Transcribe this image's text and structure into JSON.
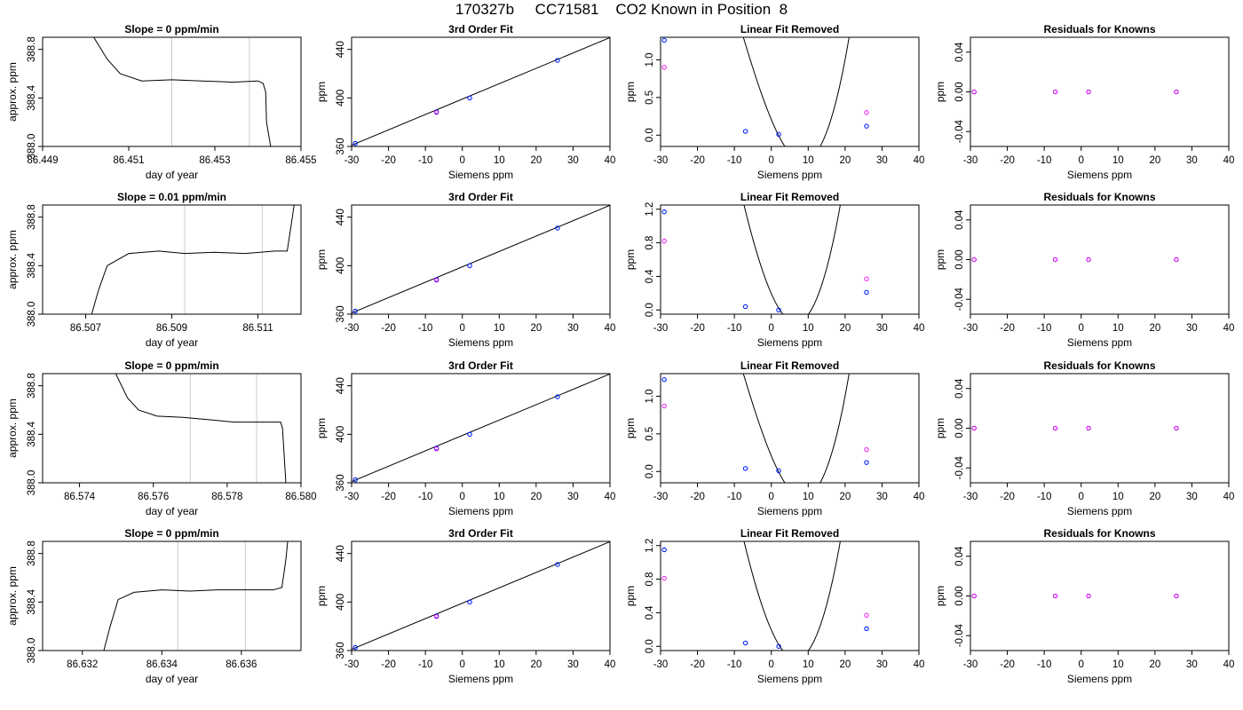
{
  "figure": {
    "title": "170327b     CC71581    CO2 Known in Position  8"
  },
  "chart_data": [
    {
      "type": "line",
      "title": "Slope =  0  ppm/min",
      "xlabel": "day of year",
      "ylabel": "approx. ppm",
      "xlim": [
        86.449,
        86.455
      ],
      "ylim": [
        388.0,
        388.9
      ],
      "xticks": [
        "86.449",
        "86.451",
        "86.453",
        "86.455"
      ],
      "yticks": [
        "388.0",
        "388.4",
        "388.8"
      ],
      "vlines": [
        86.452,
        86.4538
      ],
      "vline_color": "#cccccc",
      "series": [
        {
          "x": [
            86.4501,
            86.4505,
            86.4508,
            86.4513,
            86.452,
            86.4527,
            86.4534,
            86.454,
            86.45412,
            86.45418,
            86.4542,
            86.45432
          ],
          "values": [
            388.95,
            388.72,
            388.6,
            388.54,
            388.55,
            388.54,
            388.53,
            388.54,
            388.52,
            388.45,
            388.2,
            387.95
          ]
        }
      ]
    },
    {
      "type": "scatter",
      "title": "3rd Order Fit",
      "xlabel": "Siemens ppm",
      "ylabel": "ppm",
      "xlim": [
        -30,
        40
      ],
      "ylim": [
        360,
        450
      ],
      "xticks": [
        "-30",
        "-20",
        "-10",
        "0",
        "10",
        "20",
        "30",
        "40"
      ],
      "yticks": [
        "360",
        "400",
        "440"
      ],
      "line": {
        "x": [
          -30,
          41
        ],
        "y": [
          361,
          451
        ]
      },
      "series": [
        {
          "name": "cyan",
          "color": "#00bfff",
          "x": [
            -29,
            -7,
            2,
            25.8
          ],
          "values": [
            362.5,
            388.5,
            400,
            431
          ]
        },
        {
          "name": "blue",
          "color": "#0000ff",
          "x": [
            -29,
            -7,
            2,
            25.8
          ],
          "values": [
            362.5,
            388.5,
            400,
            431
          ]
        },
        {
          "name": "magenta",
          "color": "#ee00ee",
          "x": [
            -7
          ],
          "values": [
            388
          ]
        }
      ]
    },
    {
      "type": "scatter",
      "title": "Linear Fit Removed",
      "xlabel": "Siemens ppm",
      "ylabel": "ppm",
      "xlim": [
        -30,
        40
      ],
      "ylim": [
        -0.15,
        1.3
      ],
      "xticks": [
        "-30",
        "-20",
        "-10",
        "0",
        "10",
        "20",
        "30",
        "40"
      ],
      "yticks": [
        "0.0",
        "0.5",
        "1.0"
      ],
      "curve": [
        -29,
        40,
        0.00155,
        0.00475,
        -0.1172,
        0.2072
      ],
      "series": [
        {
          "name": "cyan",
          "color": "#00bfff",
          "x": [
            -29,
            -7,
            2,
            25.8
          ],
          "values": [
            1.26,
            0.05,
            0.01,
            0.12
          ]
        },
        {
          "name": "blue",
          "color": "#0000ff",
          "x": [
            -29,
            -7,
            2,
            25.8
          ],
          "values": [
            1.26,
            0.05,
            0.01,
            0.12
          ]
        },
        {
          "name": "magenta",
          "color": "#ee00ee",
          "x": [
            -29,
            25.8
          ],
          "values": [
            0.9,
            0.3
          ]
        }
      ]
    },
    {
      "type": "scatter",
      "title": "Residuals for Knowns",
      "xlabel": "Siemens ppm",
      "ylabel": "ppm",
      "xlim": [
        -30,
        40
      ],
      "ylim": [
        -0.055,
        0.055
      ],
      "xticks": [
        "-30",
        "-20",
        "-10",
        "0",
        "10",
        "20",
        "30",
        "40"
      ],
      "yticks": [
        "-0.04",
        "0.00",
        "0.04"
      ],
      "series": [
        {
          "name": "blue",
          "color": "#0000ff",
          "x": [
            -29,
            -7,
            2,
            25.8
          ],
          "values": [
            0,
            0,
            0,
            0
          ]
        },
        {
          "name": "magenta",
          "color": "#ee00ee",
          "x": [
            -29,
            -7,
            2,
            25.8
          ],
          "values": [
            0,
            0,
            0,
            0
          ]
        }
      ]
    },
    {
      "type": "line",
      "title": "Slope =  0.01  ppm/min",
      "xlabel": "day of year",
      "ylabel": "approx. ppm",
      "xlim": [
        86.506,
        86.512
      ],
      "ylim": [
        388.0,
        388.9
      ],
      "xticks": [
        "86.507",
        "86.509",
        "86.511"
      ],
      "yticks": [
        "388.0",
        "388.4",
        "388.8"
      ],
      "vlines": [
        86.5093,
        86.5111
      ],
      "vline_color": "#cccccc",
      "series": [
        {
          "x": [
            86.5071,
            86.5073,
            86.5075,
            86.508,
            86.5087,
            86.5093,
            86.51,
            86.5107,
            86.5114,
            86.51168,
            86.5118,
            86.51186
          ],
          "values": [
            387.95,
            388.2,
            388.4,
            388.5,
            388.52,
            388.5,
            388.51,
            388.5,
            388.52,
            388.52,
            388.8,
            388.95
          ]
        }
      ]
    },
    {
      "type": "scatter",
      "title": "3rd Order Fit",
      "xlabel": "Siemens ppm",
      "ylabel": "ppm",
      "xlim": [
        -30,
        40
      ],
      "ylim": [
        360,
        450
      ],
      "xticks": [
        "-30",
        "-20",
        "-10",
        "0",
        "10",
        "20",
        "30",
        "40"
      ],
      "yticks": [
        "360",
        "400",
        "440"
      ],
      "line": {
        "x": [
          -30,
          41
        ],
        "y": [
          361,
          451
        ]
      },
      "series": [
        {
          "name": "cyan",
          "color": "#00bfff",
          "x": [
            -29,
            -7,
            2,
            25.8
          ],
          "values": [
            362.5,
            388.5,
            400,
            431
          ]
        },
        {
          "name": "blue",
          "color": "#0000ff",
          "x": [
            -29,
            -7,
            2,
            25.8
          ],
          "values": [
            362.5,
            388.5,
            400,
            431
          ]
        },
        {
          "name": "magenta",
          "color": "#ee00ee",
          "x": [
            -7
          ],
          "values": [
            388
          ]
        }
      ]
    },
    {
      "type": "scatter",
      "title": "Linear Fit Removed",
      "xlabel": "Siemens ppm",
      "ylabel": "ppm",
      "xlim": [
        -30,
        40
      ],
      "ylim": [
        -0.05,
        1.25
      ],
      "xticks": [
        "-30",
        "-20",
        "-10",
        "0",
        "10",
        "20",
        "30",
        "40"
      ],
      "yticks": [
        "0.0",
        "0.4",
        "0.8",
        "1.2"
      ],
      "curve": [
        -29,
        40,
        0.001,
        0.0065,
        -0.1,
        0.1948
      ],
      "series": [
        {
          "name": "cyan",
          "color": "#00bfff",
          "x": [
            -29,
            -7,
            2,
            25.8
          ],
          "values": [
            1.17,
            0.04,
            0.0,
            0.21
          ]
        },
        {
          "name": "blue",
          "color": "#0000ff",
          "x": [
            -29,
            -7,
            2,
            25.8
          ],
          "values": [
            1.17,
            0.04,
            0.0,
            0.21
          ]
        },
        {
          "name": "magenta",
          "color": "#ee00ee",
          "x": [
            -29,
            25.8
          ],
          "values": [
            0.82,
            0.37
          ]
        }
      ]
    },
    {
      "type": "scatter",
      "title": "Residuals for Knowns",
      "xlabel": "Siemens ppm",
      "ylabel": "ppm",
      "xlim": [
        -30,
        40
      ],
      "ylim": [
        -0.055,
        0.055
      ],
      "xticks": [
        "-30",
        "-20",
        "-10",
        "0",
        "10",
        "20",
        "30",
        "40"
      ],
      "yticks": [
        "-0.04",
        "0.00",
        "0.04"
      ],
      "series": [
        {
          "name": "blue",
          "color": "#0000ff",
          "x": [
            -29,
            -7,
            2,
            25.8
          ],
          "values": [
            0,
            0,
            0,
            0
          ]
        },
        {
          "name": "magenta",
          "color": "#ee00ee",
          "x": [
            -29,
            -7,
            2,
            25.8
          ],
          "values": [
            0,
            0,
            0,
            0
          ]
        }
      ]
    },
    {
      "type": "line",
      "title": "Slope =  0  ppm/min",
      "xlabel": "day of year",
      "ylabel": "approx. ppm",
      "xlim": [
        86.573,
        86.58
      ],
      "ylim": [
        388.0,
        388.9
      ],
      "xticks": [
        "86.574",
        "86.576",
        "86.578",
        "86.580"
      ],
      "yticks": [
        "388.0",
        "388.4",
        "388.8"
      ],
      "vlines": [
        86.577,
        86.5788
      ],
      "vline_color": "#cccccc",
      "series": [
        {
          "x": [
            86.5749,
            86.5753,
            86.5756,
            86.5761,
            86.5768,
            86.5775,
            86.5782,
            86.5789,
            86.57945,
            86.5795,
            86.57955,
            86.5796
          ],
          "values": [
            388.95,
            388.7,
            388.6,
            388.55,
            388.54,
            388.52,
            388.5,
            388.5,
            388.5,
            388.45,
            388.2,
            387.95
          ]
        }
      ]
    },
    {
      "type": "scatter",
      "title": "3rd Order Fit",
      "xlabel": "Siemens ppm",
      "ylabel": "ppm",
      "xlim": [
        -30,
        40
      ],
      "ylim": [
        360,
        450
      ],
      "xticks": [
        "-30",
        "-20",
        "-10",
        "0",
        "10",
        "20",
        "30",
        "40"
      ],
      "yticks": [
        "360",
        "400",
        "440"
      ],
      "line": {
        "x": [
          -30,
          41
        ],
        "y": [
          361,
          451
        ]
      },
      "series": [
        {
          "name": "cyan",
          "color": "#00bfff",
          "x": [
            -29,
            -7,
            2,
            25.8
          ],
          "values": [
            362.5,
            388.5,
            400,
            431
          ]
        },
        {
          "name": "blue",
          "color": "#0000ff",
          "x": [
            -29,
            -7,
            2,
            25.8
          ],
          "values": [
            362.5,
            388.5,
            400,
            431
          ]
        },
        {
          "name": "magenta",
          "color": "#ee00ee",
          "x": [
            -7
          ],
          "values": [
            388
          ]
        }
      ]
    },
    {
      "type": "scatter",
      "title": "Linear Fit Removed",
      "xlabel": "Siemens ppm",
      "ylabel": "ppm",
      "xlim": [
        -30,
        40
      ],
      "ylim": [
        -0.15,
        1.3
      ],
      "xticks": [
        "-30",
        "-20",
        "-10",
        "0",
        "10",
        "20",
        "30",
        "40"
      ],
      "yticks": [
        "0.0",
        "0.5",
        "1.0"
      ],
      "curve": [
        -29,
        40,
        0.00155,
        0.00475,
        -0.1172,
        0.2072
      ],
      "series": [
        {
          "name": "cyan",
          "color": "#00bfff",
          "x": [
            -29,
            -7,
            2,
            25.8
          ],
          "values": [
            1.22,
            0.04,
            0.01,
            0.12
          ]
        },
        {
          "name": "blue",
          "color": "#0000ff",
          "x": [
            -29,
            -7,
            2,
            25.8
          ],
          "values": [
            1.22,
            0.04,
            0.01,
            0.12
          ]
        },
        {
          "name": "magenta",
          "color": "#ee00ee",
          "x": [
            -29,
            25.8
          ],
          "values": [
            0.87,
            0.29
          ]
        }
      ]
    },
    {
      "type": "scatter",
      "title": "Residuals for Knowns",
      "xlabel": "Siemens ppm",
      "ylabel": "ppm",
      "xlim": [
        -30,
        40
      ],
      "ylim": [
        -0.055,
        0.055
      ],
      "xticks": [
        "-30",
        "-20",
        "-10",
        "0",
        "10",
        "20",
        "30",
        "40"
      ],
      "yticks": [
        "-0.04",
        "0.00",
        "0.04"
      ],
      "series": [
        {
          "name": "blue",
          "color": "#0000ff",
          "x": [
            -29,
            -7,
            2,
            25.8
          ],
          "values": [
            0,
            0,
            0,
            0
          ]
        },
        {
          "name": "magenta",
          "color": "#ee00ee",
          "x": [
            -29,
            -7,
            2,
            25.8
          ],
          "values": [
            0,
            0,
            0,
            0
          ]
        }
      ]
    },
    {
      "type": "line",
      "title": "Slope =  0  ppm/min",
      "xlabel": "day of year",
      "ylabel": "approx. ppm",
      "xlim": [
        86.631,
        86.6375
      ],
      "ylim": [
        388.0,
        388.9
      ],
      "xticks": [
        "86.632",
        "86.634",
        "86.636"
      ],
      "yticks": [
        "388.0",
        "388.4",
        "388.8"
      ],
      "vlines": [
        86.6344,
        86.6361
      ],
      "vline_color": "#cccccc",
      "series": [
        {
          "x": [
            86.6325,
            86.6327,
            86.6329,
            86.6333,
            86.634,
            86.6347,
            86.6354,
            86.6361,
            86.6368,
            86.63702,
            86.63712,
            86.63718
          ],
          "values": [
            387.95,
            388.2,
            388.42,
            388.48,
            388.5,
            388.49,
            388.5,
            388.5,
            388.5,
            388.52,
            388.75,
            388.95
          ]
        }
      ]
    },
    {
      "type": "scatter",
      "title": "3rd Order Fit",
      "xlabel": "Siemens ppm",
      "ylabel": "ppm",
      "xlim": [
        -30,
        40
      ],
      "ylim": [
        360,
        450
      ],
      "xticks": [
        "-30",
        "-20",
        "-10",
        "0",
        "10",
        "20",
        "30",
        "40"
      ],
      "yticks": [
        "360",
        "400",
        "440"
      ],
      "line": {
        "x": [
          -30,
          41
        ],
        "y": [
          361,
          451
        ]
      },
      "series": [
        {
          "name": "cyan",
          "color": "#00bfff",
          "x": [
            -29,
            -7,
            2,
            25.8
          ],
          "values": [
            362.5,
            388.5,
            400,
            431
          ]
        },
        {
          "name": "blue",
          "color": "#0000ff",
          "x": [
            -29,
            -7,
            2,
            25.8
          ],
          "values": [
            362.5,
            388.5,
            400,
            431
          ]
        },
        {
          "name": "magenta",
          "color": "#ee00ee",
          "x": [
            -7
          ],
          "values": [
            388
          ]
        }
      ]
    },
    {
      "type": "scatter",
      "title": "Linear Fit Removed",
      "xlabel": "Siemens ppm",
      "ylabel": "ppm",
      "xlim": [
        -30,
        40
      ],
      "ylim": [
        -0.05,
        1.25
      ],
      "xticks": [
        "-30",
        "-20",
        "-10",
        "0",
        "10",
        "20",
        "30",
        "40"
      ],
      "yticks": [
        "0.0",
        "0.4",
        "0.8",
        "1.2"
      ],
      "curve": [
        -29,
        40,
        0.001,
        0.0065,
        -0.1,
        0.1948
      ],
      "series": [
        {
          "name": "cyan",
          "color": "#00bfff",
          "x": [
            -29,
            -7,
            2,
            25.8
          ],
          "values": [
            1.15,
            0.04,
            0.0,
            0.21
          ]
        },
        {
          "name": "blue",
          "color": "#0000ff",
          "x": [
            -29,
            -7,
            2,
            25.8
          ],
          "values": [
            1.15,
            0.04,
            0.0,
            0.21
          ]
        },
        {
          "name": "magenta",
          "color": "#ee00ee",
          "x": [
            -29,
            25.8
          ],
          "values": [
            0.81,
            0.37
          ]
        }
      ]
    },
    {
      "type": "scatter",
      "title": "Residuals for Knowns",
      "xlabel": "Siemens ppm",
      "ylabel": "ppm",
      "xlim": [
        -30,
        40
      ],
      "ylim": [
        -0.055,
        0.055
      ],
      "xticks": [
        "-30",
        "-20",
        "-10",
        "0",
        "10",
        "20",
        "30",
        "40"
      ],
      "yticks": [
        "-0.04",
        "0.00",
        "0.04"
      ],
      "series": [
        {
          "name": "blue",
          "color": "#0000ff",
          "x": [
            -29,
            -7,
            2,
            25.8
          ],
          "values": [
            0,
            0,
            0,
            0
          ]
        },
        {
          "name": "magenta",
          "color": "#ee00ee",
          "x": [
            -29,
            -7,
            2,
            25.8
          ],
          "values": [
            0,
            0,
            0,
            0
          ]
        }
      ]
    }
  ]
}
